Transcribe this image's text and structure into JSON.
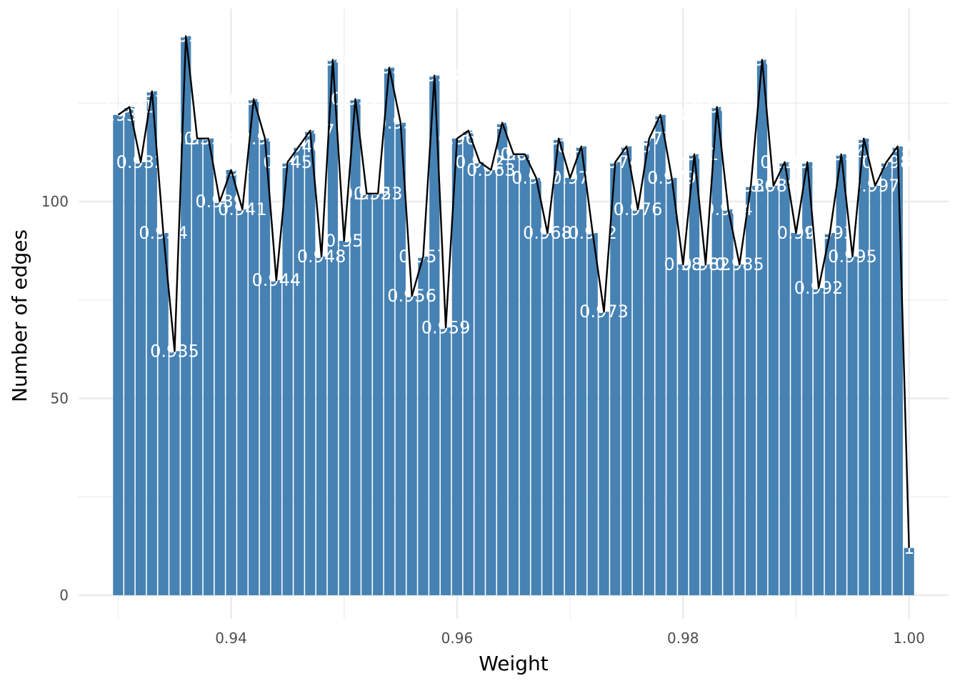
{
  "chart_data": {
    "type": "bar",
    "xlabel": "Weight",
    "ylabel": "Number of edges",
    "x_ticks": [
      0.94,
      0.96,
      0.98,
      1.0
    ],
    "x_tick_labels": [
      "0.94",
      "0.96",
      "0.98",
      "1.00"
    ],
    "y_ticks": [
      0,
      50,
      100
    ],
    "y_tick_labels": [
      "0",
      "50",
      "100"
    ],
    "xlim": [
      0.9265,
      1.0035
    ],
    "ylim": [
      -6,
      149
    ],
    "grid": true,
    "bar_color": "#4682b4",
    "line_color": "#000000",
    "label_color": "#ffffff",
    "overlay_line": true,
    "x": [
      0.93,
      0.931,
      0.932,
      0.933,
      0.934,
      0.935,
      0.936,
      0.937,
      0.938,
      0.939,
      0.94,
      0.941,
      0.942,
      0.943,
      0.944,
      0.945,
      0.946,
      0.947,
      0.948,
      0.949,
      0.95,
      0.951,
      0.952,
      0.953,
      0.954,
      0.955,
      0.956,
      0.957,
      0.958,
      0.959,
      0.96,
      0.961,
      0.962,
      0.963,
      0.964,
      0.965,
      0.966,
      0.967,
      0.968,
      0.969,
      0.97,
      0.971,
      0.972,
      0.973,
      0.974,
      0.975,
      0.976,
      0.977,
      0.978,
      0.979,
      0.98,
      0.981,
      0.982,
      0.983,
      0.984,
      0.985,
      0.986,
      0.987,
      0.988,
      0.989,
      0.99,
      0.991,
      0.992,
      0.993,
      0.994,
      0.995,
      0.996,
      0.997,
      0.998,
      0.999,
      1.0
    ],
    "values": [
      122,
      124,
      110,
      128,
      92,
      62,
      142,
      116,
      116,
      100,
      108,
      98,
      126,
      116,
      80,
      110,
      114,
      118,
      86,
      136,
      90,
      126,
      102,
      102,
      134,
      120,
      76,
      86,
      132,
      68,
      116,
      118,
      110,
      108,
      120,
      112,
      112,
      106,
      92,
      116,
      106,
      114,
      92,
      72,
      110,
      114,
      98,
      116,
      122,
      106,
      84,
      112,
      84,
      124,
      98,
      84,
      104,
      136,
      104,
      110,
      92,
      110,
      78,
      92,
      112,
      86,
      116,
      104,
      110,
      114,
      12
    ],
    "labels": [
      "0.93",
      "0.931",
      "0.932",
      "0.933",
      "0.934",
      "0.935",
      "0.936",
      "0.937",
      "0.938",
      "0.939",
      "0.94",
      "0.941",
      "0.942",
      "0.943",
      "0.944",
      "0.945",
      "0.946",
      "0.947",
      "0.948",
      "0.949",
      "0.95",
      "0.951",
      "0.952",
      "0.953",
      "0.954",
      "0.955",
      "0.956",
      "0.957",
      "0.958",
      "0.959",
      "0.96",
      "0.961",
      "0.962",
      "0.963",
      "0.964",
      "0.965",
      "0.966",
      "0.967",
      "0.968",
      "0.969",
      "0.97",
      "0.971",
      "0.972",
      "0.973",
      "0.974",
      "0.975",
      "0.976",
      "0.977",
      "0.978",
      "0.979",
      "0.98",
      "0.981",
      "0.982",
      "0.983",
      "0.984",
      "0.985",
      "0.986",
      "0.987",
      "0.988",
      "0.989",
      "0.99",
      "0.991",
      "0.992",
      "0.993",
      "0.994",
      "0.995",
      "0.996",
      "0.997",
      "0.998",
      "0.999",
      "1"
    ]
  }
}
